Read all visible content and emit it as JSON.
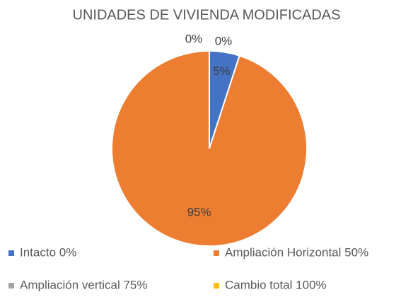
{
  "chart_data": {
    "type": "pie",
    "title": "UNIDADES DE VIVIENDA MODIFICADAS",
    "categories": [
      "Intacto 0%",
      "Ampliación Horizontal 50%",
      "Ampliación vertical 75%",
      "Cambio total 100%"
    ],
    "values": [
      5,
      95,
      0,
      0
    ],
    "value_labels": [
      "5%",
      "95%",
      "0%",
      "0%"
    ],
    "colors": [
      "#4472c4",
      "#ed7d31",
      "#a5a5a5",
      "#ffc000"
    ],
    "legend": "bottom"
  }
}
